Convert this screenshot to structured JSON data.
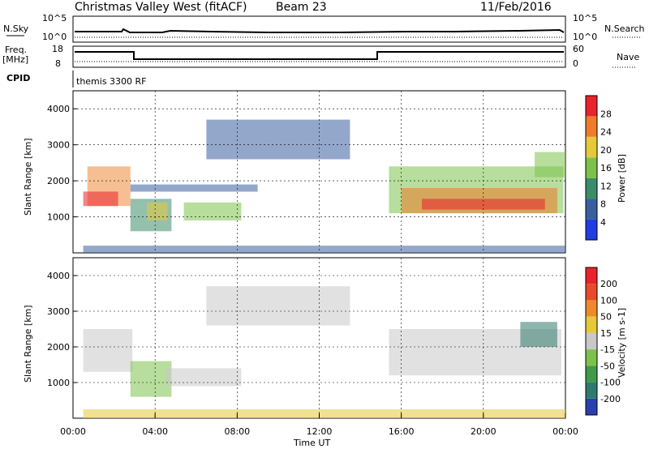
{
  "header": {
    "station": "Christmas Valley West (fitACF)",
    "beam": "Beam 23",
    "date": "11/Feb/2016"
  },
  "top_panels": {
    "nsky_label": "N.Sky",
    "nsky_ticks": [
      "10^5",
      "10^0"
    ],
    "nsearch_label": "N.Search",
    "nsearch_ticks": [
      "10^5",
      "10^0"
    ],
    "freq_label": "Freq.",
    "freq_unit": "[MHz]",
    "freq_ticks": [
      "18",
      "8"
    ],
    "nave_label": "Nave",
    "nave_ticks": [
      "60",
      "0"
    ],
    "cpid_label": "CPID",
    "cpid_text": "themis 3300 RF"
  },
  "chart_data": [
    {
      "type": "heatmap",
      "panel": "power",
      "ylabel": "Slant Range [km]",
      "yticks": [
        "1000",
        "2000",
        "3000",
        "4000"
      ],
      "y_values": [
        1000,
        2000,
        3000,
        4000
      ],
      "ylim": [
        0,
        4500
      ],
      "xlim": [
        0,
        24
      ],
      "colorbar_label": "Power [dB]",
      "colorbar_ticks": [
        "4",
        "8",
        "12",
        "16",
        "20",
        "24",
        "28"
      ],
      "colorbar_values": [
        4,
        8,
        12,
        16,
        20,
        24,
        28
      ],
      "colorbar_range": [
        0,
        32
      ],
      "colorbar_colors": [
        "#1f3fe0",
        "#3a5fa0",
        "#3c8c6a",
        "#7cc24a",
        "#e6c83a",
        "#ee7a2a",
        "#e8232a"
      ],
      "regions": [
        {
          "t0": 0.7,
          "t1": 2.8,
          "r0": 1300,
          "r1": 2400,
          "color": "#ee8a3a"
        },
        {
          "t0": 0.5,
          "t1": 2.2,
          "r0": 1300,
          "r1": 1700,
          "color": "#e8232a"
        },
        {
          "t0": 2.8,
          "t1": 4.8,
          "r0": 600,
          "r1": 1500,
          "color": "#3c8c6a"
        },
        {
          "t0": 3.6,
          "t1": 4.6,
          "r0": 900,
          "r1": 1400,
          "color": "#e6c83a"
        },
        {
          "t0": 5.4,
          "t1": 8.2,
          "r0": 900,
          "r1": 1400,
          "color": "#7cc24a"
        },
        {
          "t0": 2.8,
          "t1": 9.0,
          "r0": 1700,
          "r1": 1900,
          "color": "#3a5fa0"
        },
        {
          "t0": 6.5,
          "t1": 13.5,
          "r0": 2600,
          "r1": 3700,
          "color": "#3a5fa0"
        },
        {
          "t0": 15.4,
          "t1": 23.9,
          "r0": 1100,
          "r1": 2400,
          "color": "#7cc24a"
        },
        {
          "t0": 16.0,
          "t1": 23.6,
          "r0": 1100,
          "r1": 1800,
          "color": "#ee7a2a"
        },
        {
          "t0": 17.0,
          "t1": 23.0,
          "r0": 1200,
          "r1": 1500,
          "color": "#e8232a"
        },
        {
          "t0": 22.5,
          "t1": 24.0,
          "r0": 2100,
          "r1": 2800,
          "color": "#7cc24a"
        },
        {
          "t0": 0.5,
          "t1": 24.0,
          "r0": 0,
          "r1": 200,
          "color": "#3a5fa0"
        }
      ]
    },
    {
      "type": "heatmap",
      "panel": "velocity",
      "ylabel": "Slant Range [km]",
      "yticks": [
        "1000",
        "2000",
        "3000",
        "4000"
      ],
      "y_values": [
        1000,
        2000,
        3000,
        4000
      ],
      "ylim": [
        0,
        4500
      ],
      "xlim": [
        0,
        24
      ],
      "xticks": [
        "00:00",
        "04:00",
        "08:00",
        "12:00",
        "16:00",
        "20:00",
        "00:00"
      ],
      "x_values": [
        0,
        4,
        8,
        12,
        16,
        20,
        24
      ],
      "xlabel": "Time UT",
      "colorbar_label": "Velocity [m s-1]",
      "colorbar_ticks": [
        "200",
        "100",
        "50",
        "15",
        "-15",
        "-50",
        "-100",
        "-200"
      ],
      "colorbar_values": [
        200,
        100,
        50,
        15,
        -15,
        -50,
        -100,
        -200
      ],
      "colorbar_colors": [
        "#2a3fb0",
        "#2f7a6e",
        "#3f9a4a",
        "#7cc24a",
        "#c8c8c8",
        "#e6c83a",
        "#ee8a2a",
        "#e84a2a",
        "#e8232a"
      ],
      "regions": [
        {
          "t0": 0.5,
          "t1": 2.9,
          "r0": 1300,
          "r1": 2500,
          "color": "#c8c8c8"
        },
        {
          "t0": 2.8,
          "t1": 4.8,
          "r0": 600,
          "r1": 1600,
          "color": "#7cc24a"
        },
        {
          "t0": 4.5,
          "t1": 8.2,
          "r0": 900,
          "r1": 1400,
          "color": "#c8c8c8"
        },
        {
          "t0": 6.5,
          "t1": 13.5,
          "r0": 2600,
          "r1": 3700,
          "color": "#c8c8c8"
        },
        {
          "t0": 15.4,
          "t1": 23.8,
          "r0": 1200,
          "r1": 2500,
          "color": "#c8c8c8"
        },
        {
          "t0": 21.8,
          "t1": 23.6,
          "r0": 2000,
          "r1": 2700,
          "color": "#2f7a6e"
        },
        {
          "t0": 0.5,
          "t1": 24.0,
          "r0": 0,
          "r1": 250,
          "color": "#e6c83a"
        }
      ]
    }
  ]
}
